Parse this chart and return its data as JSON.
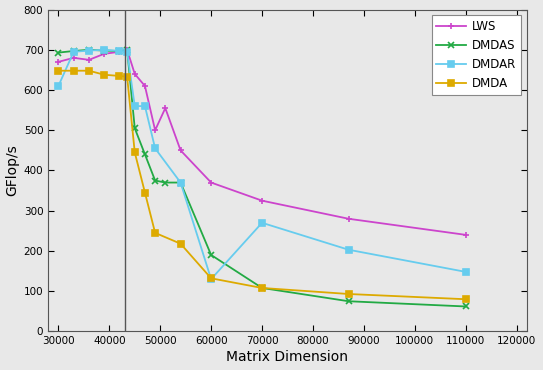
{
  "title": "",
  "xlabel": "Matrix Dimension",
  "ylabel": "GFlop/s",
  "xlim": [
    28000,
    122000
  ],
  "ylim": [
    0,
    800
  ],
  "yticks": [
    0,
    100,
    200,
    300,
    400,
    500,
    600,
    700,
    800
  ],
  "xticks": [
    30000,
    40000,
    50000,
    60000,
    70000,
    80000,
    90000,
    100000,
    110000,
    120000
  ],
  "vline_x": 43000,
  "series": {
    "LWS": {
      "color": "#CC44CC",
      "marker": "+",
      "markersize": 5,
      "x": [
        30000,
        33000,
        36000,
        39000,
        42000,
        43500,
        45000,
        47000,
        49000,
        51000,
        54000,
        60000,
        70000,
        87000,
        110000
      ],
      "y": [
        670,
        680,
        675,
        690,
        695,
        700,
        640,
        610,
        500,
        555,
        450,
        370,
        325,
        280,
        240
      ]
    },
    "DMDAS": {
      "color": "#22AA44",
      "marker": "x",
      "markersize": 5,
      "x": [
        30000,
        33000,
        36000,
        39000,
        42000,
        43500,
        45000,
        47000,
        49000,
        51000,
        54000,
        60000,
        70000,
        87000,
        110000
      ],
      "y": [
        693,
        697,
        700,
        698,
        697,
        700,
        505,
        440,
        375,
        370,
        370,
        190,
        108,
        75,
        62
      ]
    },
    "DMDAR": {
      "color": "#66CCEE",
      "marker": "s",
      "markersize": 4,
      "x": [
        30000,
        33000,
        36000,
        39000,
        42000,
        43500,
        45000,
        47000,
        49000,
        54000,
        60000,
        70000,
        87000,
        110000
      ],
      "y": [
        610,
        695,
        698,
        700,
        697,
        695,
        560,
        560,
        455,
        370,
        130,
        270,
        203,
        148
      ]
    },
    "DMDA": {
      "color": "#DDAA00",
      "marker": "s",
      "markersize": 4,
      "x": [
        30000,
        33000,
        36000,
        39000,
        42000,
        43500,
        45000,
        47000,
        49000,
        54000,
        60000,
        70000,
        87000,
        110000
      ],
      "y": [
        648,
        648,
        648,
        638,
        635,
        633,
        445,
        345,
        245,
        218,
        132,
        108,
        93,
        80
      ]
    }
  },
  "legend_loc": "upper right",
  "background_color": "#e8e8e8"
}
